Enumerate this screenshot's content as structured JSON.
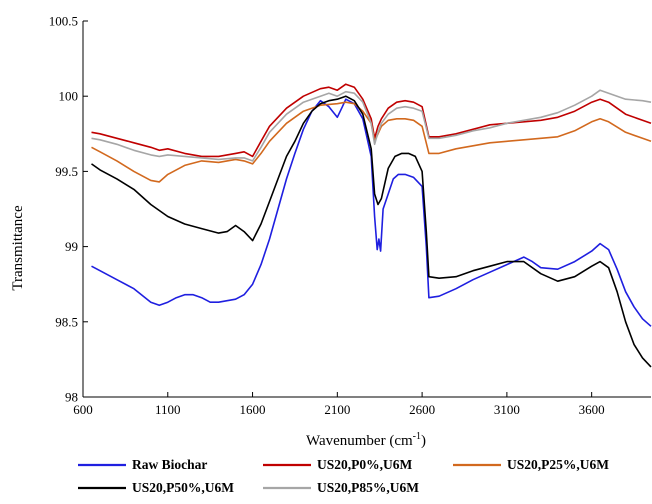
{
  "chart_data": {
    "type": "line",
    "xlabel": "Wavenumber (cm",
    "xlabel_superscript": "-1",
    "xlabel_suffix": ")",
    "ylabel": "Transmittance",
    "xlim": [
      600,
      3950
    ],
    "ylim": [
      98,
      100.5
    ],
    "x_ticks": [
      600,
      1100,
      1600,
      2100,
      2600,
      3100,
      3600
    ],
    "y_ticks": [
      98,
      98.5,
      99,
      99.5,
      100,
      100.5
    ],
    "x_tick_labels": [
      "600",
      "1100",
      "1600",
      "2100",
      "2600",
      "3100",
      "3600"
    ],
    "y_tick_labels": [
      "98",
      "98.5",
      "99",
      "99.5",
      "100",
      "100.5"
    ],
    "grid": false,
    "legend_position": "bottom",
    "series": [
      {
        "name": "Raw Biochar",
        "color": "#1f1fe0",
        "points": [
          [
            650,
            98.87
          ],
          [
            700,
            98.84
          ],
          [
            800,
            98.78
          ],
          [
            900,
            98.72
          ],
          [
            1000,
            98.63
          ],
          [
            1050,
            98.61
          ],
          [
            1100,
            98.63
          ],
          [
            1150,
            98.66
          ],
          [
            1200,
            98.68
          ],
          [
            1250,
            98.68
          ],
          [
            1300,
            98.66
          ],
          [
            1350,
            98.63
          ],
          [
            1400,
            98.63
          ],
          [
            1450,
            98.64
          ],
          [
            1500,
            98.65
          ],
          [
            1550,
            98.68
          ],
          [
            1600,
            98.75
          ],
          [
            1650,
            98.88
          ],
          [
            1700,
            99.05
          ],
          [
            1750,
            99.25
          ],
          [
            1800,
            99.45
          ],
          [
            1850,
            99.62
          ],
          [
            1900,
            99.78
          ],
          [
            1950,
            99.9
          ],
          [
            2000,
            99.97
          ],
          [
            2050,
            99.93
          ],
          [
            2100,
            99.86
          ],
          [
            2130,
            99.93
          ],
          [
            2150,
            99.98
          ],
          [
            2200,
            99.95
          ],
          [
            2250,
            99.85
          ],
          [
            2300,
            99.6
          ],
          [
            2320,
            99.2
          ],
          [
            2335,
            98.98
          ],
          [
            2345,
            99.05
          ],
          [
            2355,
            98.97
          ],
          [
            2370,
            99.25
          ],
          [
            2400,
            99.35
          ],
          [
            2430,
            99.45
          ],
          [
            2460,
            99.48
          ],
          [
            2500,
            99.48
          ],
          [
            2550,
            99.46
          ],
          [
            2600,
            99.4
          ],
          [
            2625,
            99.0
          ],
          [
            2640,
            98.66
          ],
          [
            2700,
            98.67
          ],
          [
            2800,
            98.72
          ],
          [
            2900,
            98.78
          ],
          [
            3000,
            98.83
          ],
          [
            3100,
            98.88
          ],
          [
            3200,
            98.93
          ],
          [
            3250,
            98.9
          ],
          [
            3300,
            98.86
          ],
          [
            3400,
            98.85
          ],
          [
            3500,
            98.9
          ],
          [
            3600,
            98.97
          ],
          [
            3650,
            99.02
          ],
          [
            3700,
            98.98
          ],
          [
            3750,
            98.85
          ],
          [
            3800,
            98.7
          ],
          [
            3850,
            98.6
          ],
          [
            3900,
            98.52
          ],
          [
            3950,
            98.47
          ]
        ]
      },
      {
        "name": "US20,P0%,U6M",
        "color": "#c00000",
        "points": [
          [
            650,
            99.76
          ],
          [
            700,
            99.75
          ],
          [
            800,
            99.72
          ],
          [
            900,
            99.69
          ],
          [
            1000,
            99.66
          ],
          [
            1050,
            99.64
          ],
          [
            1100,
            99.65
          ],
          [
            1200,
            99.62
          ],
          [
            1300,
            99.6
          ],
          [
            1400,
            99.6
          ],
          [
            1500,
            99.62
          ],
          [
            1550,
            99.63
          ],
          [
            1600,
            99.6
          ],
          [
            1650,
            99.7
          ],
          [
            1700,
            99.8
          ],
          [
            1800,
            99.92
          ],
          [
            1900,
            100.0
          ],
          [
            2000,
            100.05
          ],
          [
            2050,
            100.06
          ],
          [
            2100,
            100.04
          ],
          [
            2150,
            100.08
          ],
          [
            2200,
            100.06
          ],
          [
            2250,
            99.98
          ],
          [
            2300,
            99.85
          ],
          [
            2320,
            99.72
          ],
          [
            2340,
            99.8
          ],
          [
            2360,
            99.85
          ],
          [
            2400,
            99.92
          ],
          [
            2450,
            99.96
          ],
          [
            2500,
            99.97
          ],
          [
            2550,
            99.96
          ],
          [
            2600,
            99.93
          ],
          [
            2640,
            99.73
          ],
          [
            2700,
            99.73
          ],
          [
            2800,
            99.75
          ],
          [
            2900,
            99.78
          ],
          [
            3000,
            99.81
          ],
          [
            3100,
            99.82
          ],
          [
            3200,
            99.83
          ],
          [
            3300,
            99.84
          ],
          [
            3400,
            99.86
          ],
          [
            3500,
            99.9
          ],
          [
            3600,
            99.96
          ],
          [
            3650,
            99.98
          ],
          [
            3700,
            99.96
          ],
          [
            3800,
            99.88
          ],
          [
            3900,
            99.84
          ],
          [
            3950,
            99.82
          ]
        ]
      },
      {
        "name": "US20,P25%,U6M",
        "color": "#d2691e",
        "points": [
          [
            650,
            99.66
          ],
          [
            700,
            99.63
          ],
          [
            800,
            99.57
          ],
          [
            900,
            99.5
          ],
          [
            1000,
            99.44
          ],
          [
            1050,
            99.43
          ],
          [
            1100,
            99.48
          ],
          [
            1200,
            99.54
          ],
          [
            1300,
            99.57
          ],
          [
            1400,
            99.56
          ],
          [
            1500,
            99.58
          ],
          [
            1550,
            99.57
          ],
          [
            1600,
            99.55
          ],
          [
            1650,
            99.62
          ],
          [
            1700,
            99.7
          ],
          [
            1800,
            99.82
          ],
          [
            1900,
            99.9
          ],
          [
            2000,
            99.94
          ],
          [
            2100,
            99.95
          ],
          [
            2150,
            99.96
          ],
          [
            2200,
            99.95
          ],
          [
            2250,
            99.9
          ],
          [
            2300,
            99.82
          ],
          [
            2320,
            99.7
          ],
          [
            2340,
            99.75
          ],
          [
            2360,
            99.8
          ],
          [
            2400,
            99.84
          ],
          [
            2450,
            99.85
          ],
          [
            2500,
            99.85
          ],
          [
            2550,
            99.84
          ],
          [
            2600,
            99.8
          ],
          [
            2640,
            99.62
          ],
          [
            2700,
            99.62
          ],
          [
            2800,
            99.65
          ],
          [
            2900,
            99.67
          ],
          [
            3000,
            99.69
          ],
          [
            3100,
            99.7
          ],
          [
            3200,
            99.71
          ],
          [
            3300,
            99.72
          ],
          [
            3400,
            99.73
          ],
          [
            3500,
            99.77
          ],
          [
            3600,
            99.83
          ],
          [
            3650,
            99.85
          ],
          [
            3700,
            99.83
          ],
          [
            3800,
            99.76
          ],
          [
            3900,
            99.72
          ],
          [
            3950,
            99.7
          ]
        ]
      },
      {
        "name": "US20,P50%,U6M",
        "color": "#000000",
        "points": [
          [
            650,
            99.55
          ],
          [
            700,
            99.51
          ],
          [
            800,
            99.45
          ],
          [
            900,
            99.38
          ],
          [
            1000,
            99.28
          ],
          [
            1100,
            99.2
          ],
          [
            1200,
            99.15
          ],
          [
            1300,
            99.12
          ],
          [
            1400,
            99.09
          ],
          [
            1450,
            99.1
          ],
          [
            1500,
            99.14
          ],
          [
            1550,
            99.1
          ],
          [
            1600,
            99.04
          ],
          [
            1650,
            99.15
          ],
          [
            1700,
            99.3
          ],
          [
            1750,
            99.45
          ],
          [
            1800,
            99.6
          ],
          [
            1850,
            99.7
          ],
          [
            1900,
            99.82
          ],
          [
            1950,
            99.9
          ],
          [
            2000,
            99.95
          ],
          [
            2050,
            99.97
          ],
          [
            2100,
            99.98
          ],
          [
            2150,
            100.0
          ],
          [
            2200,
            99.97
          ],
          [
            2250,
            99.88
          ],
          [
            2300,
            99.65
          ],
          [
            2320,
            99.35
          ],
          [
            2340,
            99.28
          ],
          [
            2360,
            99.32
          ],
          [
            2400,
            99.52
          ],
          [
            2440,
            99.6
          ],
          [
            2480,
            99.62
          ],
          [
            2520,
            99.62
          ],
          [
            2560,
            99.6
          ],
          [
            2600,
            99.5
          ],
          [
            2625,
            99.1
          ],
          [
            2640,
            98.8
          ],
          [
            2700,
            98.79
          ],
          [
            2800,
            98.8
          ],
          [
            2900,
            98.84
          ],
          [
            3000,
            98.87
          ],
          [
            3100,
            98.9
          ],
          [
            3200,
            98.9
          ],
          [
            3300,
            98.82
          ],
          [
            3400,
            98.77
          ],
          [
            3500,
            98.8
          ],
          [
            3600,
            98.87
          ],
          [
            3650,
            98.9
          ],
          [
            3700,
            98.86
          ],
          [
            3750,
            98.7
          ],
          [
            3800,
            98.5
          ],
          [
            3850,
            98.35
          ],
          [
            3900,
            98.26
          ],
          [
            3950,
            98.2
          ]
        ]
      },
      {
        "name": "US20,P85%,U6M",
        "color": "#a6a6a6",
        "points": [
          [
            650,
            99.72
          ],
          [
            700,
            99.71
          ],
          [
            800,
            99.68
          ],
          [
            900,
            99.64
          ],
          [
            1000,
            99.61
          ],
          [
            1050,
            99.6
          ],
          [
            1100,
            99.61
          ],
          [
            1200,
            99.6
          ],
          [
            1300,
            99.59
          ],
          [
            1400,
            99.58
          ],
          [
            1500,
            99.59
          ],
          [
            1550,
            99.59
          ],
          [
            1600,
            99.57
          ],
          [
            1650,
            99.66
          ],
          [
            1700,
            99.76
          ],
          [
            1800,
            99.88
          ],
          [
            1900,
            99.96
          ],
          [
            2000,
            100.0
          ],
          [
            2050,
            100.02
          ],
          [
            2100,
            100.0
          ],
          [
            2150,
            100.03
          ],
          [
            2200,
            100.02
          ],
          [
            2250,
            99.96
          ],
          [
            2300,
            99.82
          ],
          [
            2320,
            99.68
          ],
          [
            2340,
            99.76
          ],
          [
            2360,
            99.82
          ],
          [
            2400,
            99.88
          ],
          [
            2450,
            99.92
          ],
          [
            2500,
            99.93
          ],
          [
            2550,
            99.92
          ],
          [
            2600,
            99.9
          ],
          [
            2640,
            99.72
          ],
          [
            2700,
            99.72
          ],
          [
            2800,
            99.74
          ],
          [
            2900,
            99.77
          ],
          [
            3000,
            99.79
          ],
          [
            3100,
            99.82
          ],
          [
            3200,
            99.84
          ],
          [
            3300,
            99.86
          ],
          [
            3400,
            99.89
          ],
          [
            3500,
            99.94
          ],
          [
            3600,
            100.0
          ],
          [
            3650,
            100.04
          ],
          [
            3700,
            100.02
          ],
          [
            3800,
            99.98
          ],
          [
            3900,
            99.97
          ],
          [
            3950,
            99.96
          ]
        ]
      }
    ]
  }
}
